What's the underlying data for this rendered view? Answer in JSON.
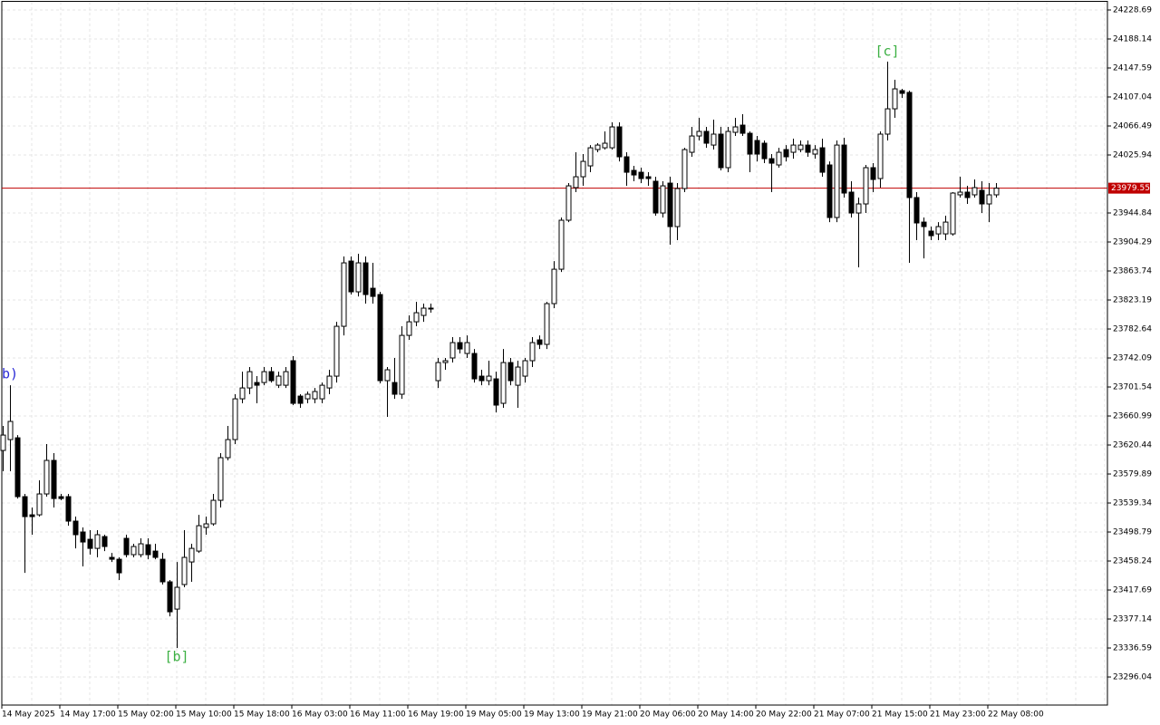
{
  "chart_data": {
    "type": "candlestick",
    "categories": [
      "14 May 2025",
      null,
      null,
      null,
      null,
      null,
      null,
      null,
      "14 May 17:00",
      null,
      null,
      null,
      null,
      null,
      null,
      null,
      "15 May 02:00",
      null,
      null,
      null,
      null,
      null,
      null,
      null,
      "15 May 10:00",
      null,
      null,
      null,
      null,
      null,
      null,
      null,
      "15 May 18:00",
      null,
      null,
      null,
      null,
      null,
      null,
      null,
      "16 May 03:00",
      null,
      null,
      null,
      null,
      null,
      null,
      null,
      "16 May 11:00",
      null,
      null,
      null,
      null,
      null,
      null,
      null,
      "16 May 19:00",
      null,
      null,
      null,
      null,
      null,
      null,
      null,
      "19 May 05:00",
      null,
      null,
      null,
      null,
      null,
      null,
      null,
      "19 May 13:00",
      null,
      null,
      null,
      null,
      null,
      null,
      null,
      "19 May 21:00",
      null,
      null,
      null,
      null,
      null,
      null,
      null,
      "20 May 06:00",
      null,
      null,
      null,
      null,
      null,
      null,
      null,
      "20 May 14:00",
      null,
      null,
      null,
      null,
      null,
      null,
      null,
      "20 May 22:00",
      null,
      null,
      null,
      null,
      null,
      null,
      null,
      "21 May 07:00",
      null,
      null,
      null,
      null,
      null,
      null,
      null,
      "21 May 15:00",
      null,
      null,
      null,
      null,
      null,
      null,
      null,
      "21 May 23:00",
      null,
      null,
      null,
      null,
      null,
      null,
      null,
      "22 May 08:00",
      null
    ],
    "open": [
      23612.8,
      23628.0,
      23630.5,
      23548.2,
      23522.8,
      23522.8,
      23552.0,
      23598.9,
      23548.2,
      23548.2,
      23514.0,
      23498.8,
      23488.6,
      23475.9,
      23492.4,
      23463.3,
      23460.7,
      23489.9,
      23467.1,
      23467.1,
      23481.0,
      23472.1,
      23460.7,
      23429.1,
      23391.0,
      23425.3,
      23456.9,
      23472.1,
      23505.1,
      23510.2,
      23543.1,
      23602.7,
      23628.0,
      23685.0,
      23700.2,
      23707.8,
      23707.8,
      23723.0,
      23704.0,
      23704.0,
      23738.3,
      23688.8,
      23685.0,
      23685.0,
      23685.0,
      23700.2,
      23716.7,
      23786.4,
      23877.6,
      23834.6,
      23875.1,
      23839.6,
      23830.8,
      23710.4,
      23707.8,
      23691.4,
      23773.7,
      23792.7,
      23801.6,
      23811.8,
      23710.4,
      23735.7,
      23742.1,
      23763.6,
      23748.4,
      23748.4,
      23716.7,
      23710.4,
      23712.9,
      23678.7,
      23735.7,
      23704.0,
      23716.7,
      23738.3,
      23767.4,
      23761.1,
      23818.1,
      23866.2,
      23934.7,
      23980.3,
      23995.5,
      24010.7,
      24033.5,
      24036.0,
      24036.0,
      24065.2,
      24023.4,
      24004.4,
      24001.8,
      23995.5,
      23989.2,
      23944.8,
      23986.6,
      23925.8,
      23979.0,
      24029.7,
      24052.5,
      24058.9,
      24039.8,
      24055.1,
      24008.2,
      24057.6,
      24067.7,
      24056.3,
      24046.2,
      24042.4,
      24020.8,
      24012.0,
      24033.5,
      24029.7,
      24033.5,
      24039.8,
      24027.2,
      24036.0,
      24012.0,
      23938.5,
      24039.8,
      23974.0,
      23944.8,
      23957.5,
      24008.2,
      23993.0,
      24055.1,
      24090.5,
      24115.9,
      24113.4,
      23966.4,
      23932.1,
      23919.5,
      23915.6,
      23915.6,
      23915.6,
      23970.2,
      23974.0,
      23970.2,
      23976.5,
      23957.5,
      23970.2
    ],
    "high": [
      23647.0,
      23704.0,
      23634.3,
      23552.0,
      23533.0,
      23571.0,
      23621.7,
      23609.0,
      23552.0,
      23552.0,
      23520.3,
      23505.1,
      23501.3,
      23501.3,
      23495.0,
      23469.6,
      23463.3,
      23495.0,
      23482.3,
      23489.9,
      23489.9,
      23482.3,
      23469.6,
      23431.6,
      23456.9,
      23501.3,
      23482.3,
      23522.8,
      23520.3,
      23552.0,
      23609.0,
      23647.0,
      23691.4,
      23723.0,
      23729.4,
      23716.7,
      23729.4,
      23729.4,
      23723.0,
      23729.4,
      23744.6,
      23691.4,
      23695.2,
      23700.2,
      23707.8,
      23725.6,
      23792.7,
      23884.0,
      23884.0,
      23887.8,
      23884.0,
      23875.1,
      23834.6,
      23729.4,
      23742.1,
      23786.4,
      23801.6,
      23820.6,
      23818.1,
      23818.1,
      23742.1,
      23742.1,
      23771.2,
      23771.2,
      23773.7,
      23754.7,
      23725.6,
      23738.3,
      23723.0,
      23754.7,
      23742.1,
      23738.3,
      23742.1,
      23771.2,
      23773.7,
      23820.6,
      23877.6,
      23938.5,
      23986.6,
      24029.7,
      24027.2,
      24039.8,
      24042.4,
      24058.9,
      24071.5,
      24071.5,
      24029.7,
      24010.7,
      24008.2,
      24001.8,
      23995.5,
      23989.2,
      23995.5,
      23986.6,
      24036.0,
      24065.2,
      24077.9,
      24065.2,
      24075.3,
      24065.2,
      24065.2,
      24077.9,
      24082.9,
      24058.9,
      24052.5,
      24046.2,
      24027.2,
      24036.0,
      24039.8,
      24048.7,
      24046.2,
      24046.2,
      24039.8,
      24048.7,
      24017.0,
      24046.2,
      24050.0,
      23989.2,
      23966.4,
      24012.0,
      24014.5,
      24058.9,
      24156.4,
      24131.1,
      24118.4,
      24115.9,
      23974.0,
      23938.5,
      23925.8,
      23932.1,
      23941.0,
      23974.0,
      23995.5,
      23982.8,
      23991.7,
      23989.2,
      23986.6,
      23986.6
    ],
    "low": [
      23583.7,
      23583.7,
      23545.6,
      23441.7,
      23495.0,
      23520.3,
      23548.2,
      23533.0,
      23543.1,
      23507.6,
      23475.9,
      23450.6,
      23467.1,
      23463.3,
      23472.1,
      23456.9,
      23431.6,
      23463.3,
      23463.3,
      23463.3,
      23460.7,
      23460.7,
      23425.3,
      23380.9,
      23336.6,
      23421.5,
      23429.1,
      23469.6,
      23495.0,
      23507.6,
      23533.0,
      23598.9,
      23621.7,
      23678.7,
      23691.4,
      23678.7,
      23704.0,
      23707.8,
      23700.2,
      23700.2,
      23676.2,
      23672.4,
      23678.7,
      23678.7,
      23678.7,
      23691.4,
      23707.8,
      23773.7,
      23830.8,
      23828.2,
      23818.1,
      23818.1,
      23706.6,
      23659.7,
      23685.0,
      23685.0,
      23767.4,
      23786.4,
      23792.7,
      23805.4,
      23700.2,
      23725.6,
      23735.7,
      23748.4,
      23742.1,
      23707.8,
      23704.0,
      23704.0,
      23666.0,
      23672.4,
      23704.0,
      23672.4,
      23707.8,
      23729.4,
      23754.7,
      23754.7,
      23811.8,
      23862.4,
      23932.1,
      23974.0,
      23982.8,
      24001.8,
      24029.7,
      24033.5,
      24033.5,
      24017.0,
      23982.8,
      23989.2,
      23986.6,
      23982.8,
      23941.0,
      23938.5,
      23900.5,
      23906.8,
      23974.0,
      24023.4,
      24046.2,
      24036.0,
      24033.5,
      24004.4,
      24001.8,
      24052.5,
      24052.5,
      24001.8,
      24017.0,
      24014.5,
      23974.0,
      24008.2,
      24017.0,
      24020.8,
      24029.7,
      24023.4,
      24020.8,
      23995.5,
      23932.1,
      23932.1,
      23966.4,
      23938.5,
      23868.8,
      23944.8,
      23974.0,
      23980.3,
      24046.2,
      24077.9,
      24105.7,
      23875.1,
      23906.8,
      23881.4,
      23906.8,
      23906.8,
      23906.8,
      23913.1,
      23966.4,
      23957.5,
      23966.4,
      23944.8,
      23932.1,
      23966.4
    ],
    "close": [
      23634.3,
      23653.4,
      23548.2,
      23520.3,
      23520.3,
      23552.0,
      23598.9,
      23545.6,
      23545.6,
      23514.0,
      23495.0,
      23484.8,
      23475.9,
      23495.0,
      23478.5,
      23460.7,
      23441.7,
      23467.1,
      23478.5,
      23482.3,
      23467.1,
      23463.3,
      23429.1,
      23387.2,
      23421.5,
      23463.3,
      23475.9,
      23507.6,
      23510.2,
      23543.1,
      23602.7,
      23628.0,
      23685.0,
      23700.2,
      23723.0,
      23704.0,
      23723.0,
      23710.4,
      23716.7,
      23723.0,
      23678.7,
      23678.7,
      23691.4,
      23695.2,
      23704.0,
      23716.7,
      23786.4,
      23875.1,
      23834.6,
      23875.1,
      23830.8,
      23828.2,
      23710.4,
      23725.6,
      23691.4,
      23773.7,
      23792.7,
      23805.4,
      23811.8,
      23811.8,
      23735.7,
      23738.3,
      23763.6,
      23754.7,
      23763.6,
      23712.9,
      23710.4,
      23716.7,
      23676.2,
      23735.7,
      23710.4,
      23729.4,
      23738.3,
      23763.6,
      23761.1,
      23818.1,
      23866.2,
      23934.7,
      23982.8,
      23995.5,
      24017.0,
      24036.0,
      24039.8,
      24042.4,
      24065.2,
      24023.4,
      24001.8,
      23998.0,
      23993.0,
      23993.0,
      23944.8,
      23982.8,
      23925.8,
      23979.0,
      24033.5,
      24052.5,
      24058.9,
      24042.4,
      24055.1,
      24008.2,
      24058.9,
      24065.2,
      24056.3,
      24027.2,
      24027.2,
      24020.8,
      24014.5,
      24029.7,
      24023.4,
      24039.8,
      24039.8,
      24029.7,
      24033.5,
      24001.8,
      23938.5,
      24039.8,
      23972.7,
      23944.8,
      23957.5,
      24008.2,
      23991.7,
      24055.1,
      24090.5,
      24118.4,
      24112.1,
      23966.4,
      23930.9,
      23925.8,
      23913.1,
      23925.8,
      23932.1,
      23972.7,
      23974.0,
      23966.4,
      23980.3,
      23957.5,
      23970.2,
      23979.55
    ],
    "up_color": "#ffffff",
    "down_color": "#000000",
    "outline_color": "#000000",
    "current_price": 23979.55,
    "price_line_color": "#c00000",
    "ylim": [
      23256.8,
      24240.1
    ],
    "yticks": [
      24228.69,
      24188.14,
      24147.59,
      24107.04,
      24066.49,
      24025.94,
      23944.84,
      23904.29,
      23863.74,
      23823.19,
      23782.64,
      23742.09,
      23701.54,
      23660.99,
      23620.44,
      23579.89,
      23539.34,
      23498.79,
      23458.24,
      23417.69,
      23377.14,
      23336.59,
      23296.04
    ],
    "grid": true,
    "annotations": [
      {
        "text": "b)",
        "color": "#2a2ad6"
      },
      {
        "text": "[b]",
        "color": "#3cb043"
      },
      {
        "text": "[c]",
        "color": "#3cb043"
      }
    ]
  }
}
